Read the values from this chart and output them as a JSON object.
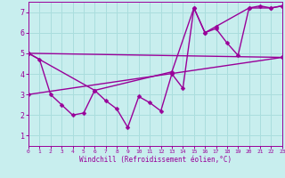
{
  "xlabel": "Windchill (Refroidissement éolien,°C)",
  "background_color": "#c8eeee",
  "grid_color": "#aadddd",
  "line_color": "#990099",
  "xlim": [
    0,
    23
  ],
  "ylim": [
    0.5,
    7.5
  ],
  "xticks": [
    0,
    1,
    2,
    3,
    4,
    5,
    6,
    7,
    8,
    9,
    10,
    11,
    12,
    13,
    14,
    15,
    16,
    17,
    18,
    19,
    20,
    21,
    22,
    23
  ],
  "yticks": [
    1,
    2,
    3,
    4,
    5,
    6,
    7
  ],
  "series1_x": [
    0,
    1,
    2,
    3,
    4,
    5,
    6,
    7,
    8,
    9,
    10,
    11,
    12,
    13,
    14,
    15,
    16,
    17,
    18,
    19,
    20,
    21,
    22,
    23
  ],
  "series1_y": [
    5.0,
    4.7,
    3.0,
    2.5,
    2.0,
    2.1,
    3.2,
    2.7,
    2.3,
    1.4,
    2.9,
    2.6,
    2.2,
    4.0,
    3.3,
    7.2,
    6.0,
    6.2,
    5.5,
    4.9,
    7.2,
    7.3,
    7.2,
    7.3
  ],
  "series2_x": [
    0,
    6,
    13,
    15,
    16,
    17,
    20,
    22,
    23
  ],
  "series2_y": [
    5.0,
    3.2,
    4.1,
    7.2,
    6.0,
    6.3,
    7.2,
    7.2,
    7.3
  ],
  "series3_x": [
    0,
    23
  ],
  "series3_y": [
    5.0,
    4.8
  ],
  "series4_x": [
    0,
    23
  ],
  "series4_y": [
    3.0,
    4.8
  ],
  "marker_size": 2.5,
  "line_width": 1.0
}
